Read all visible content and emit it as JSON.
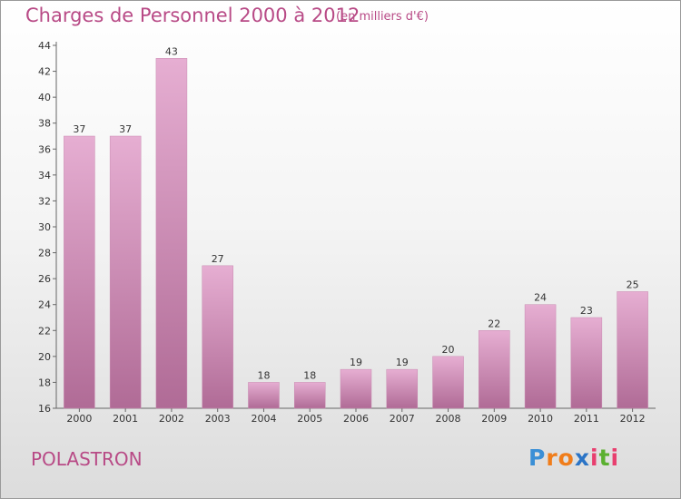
{
  "header": {
    "title": "Charges de Personnel 2000 à 2012",
    "subtitle": "(en milliers d'€)"
  },
  "footer": {
    "commune": "POLASTRON",
    "logo": "Proxiti"
  },
  "colors": {
    "accent": "#b84a86",
    "bar_light": "#e2a7cc",
    "bar_dark": "#b8709c"
  },
  "chart_data": {
    "type": "bar",
    "title": "Charges de Personnel 2000 à 2012",
    "subtitle": "(en milliers d'€)",
    "categories": [
      "2000",
      "2001",
      "2002",
      "2003",
      "2004",
      "2005",
      "2006",
      "2007",
      "2008",
      "2009",
      "2010",
      "2011",
      "2012"
    ],
    "values": [
      37,
      37,
      43,
      27,
      18,
      18,
      19,
      19,
      20,
      22,
      24,
      23,
      25
    ],
    "ylim": [
      16,
      44
    ],
    "yticks": [
      16,
      18,
      20,
      22,
      24,
      26,
      28,
      30,
      32,
      34,
      36,
      38,
      40,
      42,
      44
    ],
    "xlabel": "",
    "ylabel": "",
    "grid": false,
    "legend": "none"
  }
}
